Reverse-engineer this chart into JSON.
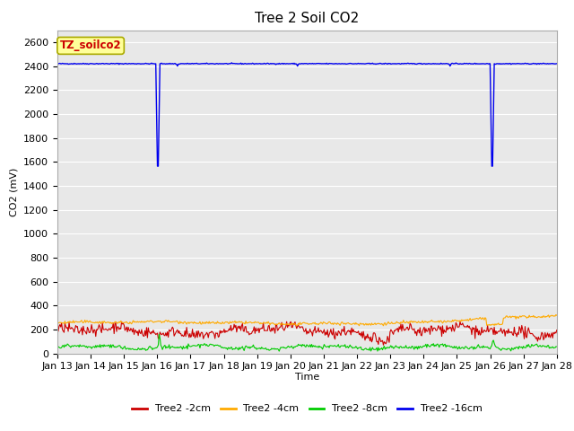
{
  "title": "Tree 2 Soil CO2",
  "ylabel": "CO2 (mV)",
  "xlabel": "Time",
  "ylim": [
    0,
    2700
  ],
  "yticks": [
    0,
    200,
    400,
    600,
    800,
    1000,
    1200,
    1400,
    1600,
    1800,
    2000,
    2200,
    2400,
    2600
  ],
  "xtick_labels": [
    "Jan 13",
    "Jan 14",
    "Jan 15",
    "Jan 16",
    "Jan 17",
    "Jan 18",
    "Jan 19",
    "Jan 20",
    "Jan 21",
    "Jan 22",
    "Jan 23",
    "Jan 24",
    "Jan 25",
    "Jan 26",
    "Jan 27",
    "Jan 28"
  ],
  "bg_color": "#e8e8e8",
  "fig_color": "#ffffff",
  "series": {
    "red": {
      "label": "Tree2 -2cm",
      "color": "#cc0000"
    },
    "orange": {
      "label": "Tree2 -4cm",
      "color": "#ffaa00"
    },
    "green": {
      "label": "Tree2 -8cm",
      "color": "#00cc00"
    },
    "blue": {
      "label": "Tree2 -16cm",
      "color": "#0000ee"
    }
  },
  "annotation_label": "TZ_soilco2",
  "annotation_bg": "#ffff99",
  "annotation_border": "#aaaa00",
  "annotation_text_color": "#cc0000",
  "title_fontsize": 11,
  "axis_label_fontsize": 8,
  "tick_fontsize": 8,
  "legend_fontsize": 8
}
